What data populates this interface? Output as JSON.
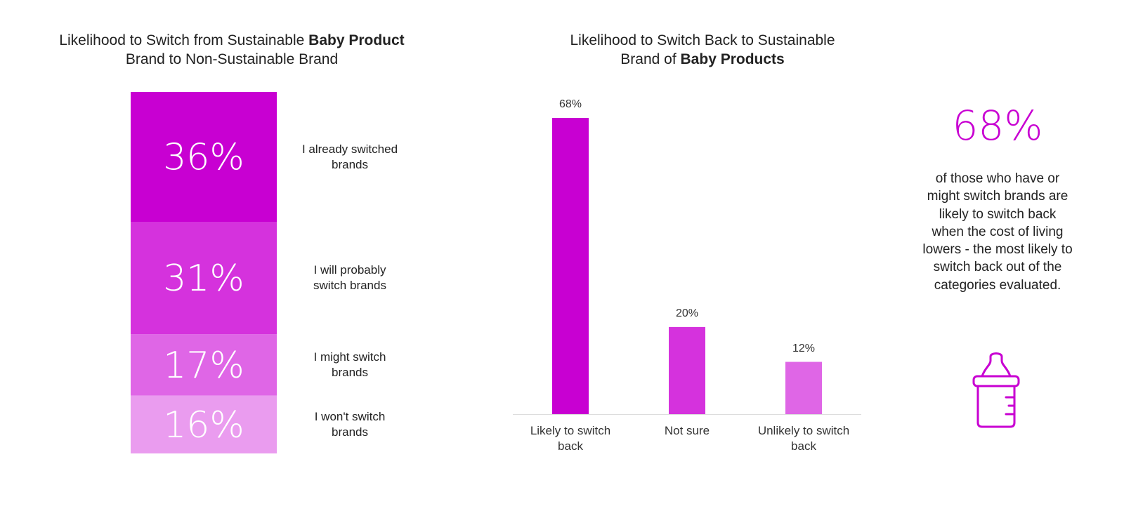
{
  "colors": {
    "magenta_1": "#c800d2",
    "magenta_2": "#d532dd",
    "magenta_3": "#df66e6",
    "magenta_4": "#ea9cef",
    "axis": "#dddddd"
  },
  "left_chart": {
    "title_normal": "Likelihood to Switch from Sustainable ",
    "title_bold": "Baby Product",
    "title_line2": "Brand to Non-Sustainable Brand"
  },
  "right_chart": {
    "title_line1": "Likelihood to Switch Back to Sustainable",
    "title_line2_normal": "Brand of ",
    "title_line2_bold": "Baby Products"
  },
  "callout": {
    "stat": "68%",
    "text": "of those who have or might switch brands are likely to switch back when the cost of living lowers - the most likely to switch back out of the categories evaluated.",
    "icon": "baby-bottle-icon"
  },
  "chart_data": [
    {
      "type": "bar",
      "stacked": true,
      "title": "Likelihood to Switch from Sustainable Baby Product Brand to Non-Sustainable Brand",
      "categories": [
        "I already switched brands",
        "I will probably switch brands",
        "I might switch brands",
        "I won't switch brands"
      ],
      "labels": [
        "I already switched\nbrands",
        "I will probably\nswitch brands",
        "I might switch\nbrands",
        "I won't switch\nbrands"
      ],
      "values": [
        36,
        31,
        17,
        16
      ],
      "value_labels": [
        "36%",
        "31%",
        "17%",
        "16%"
      ],
      "unit": "%",
      "colors": [
        "#c800d2",
        "#d532dd",
        "#df66e6",
        "#ea9cef"
      ]
    },
    {
      "type": "bar",
      "title": "Likelihood to Switch Back to Sustainable Brand of Baby Products",
      "categories": [
        "Likely to switch back",
        "Not sure",
        "Unlikely to switch back"
      ],
      "labels": [
        "Likely to switch\nback",
        "Not sure",
        "Unlikely to switch\nback"
      ],
      "values": [
        68,
        20,
        12
      ],
      "value_labels": [
        "68%",
        "20%",
        "12%"
      ],
      "unit": "%",
      "ylim": [
        0,
        70
      ],
      "grid": false,
      "colors": [
        "#c800d2",
        "#d532dd",
        "#df66e6"
      ]
    }
  ]
}
